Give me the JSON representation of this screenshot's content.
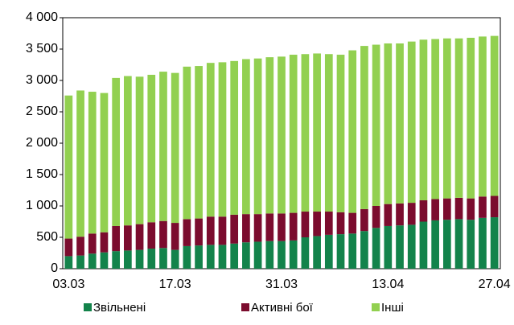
{
  "chart_data": {
    "type": "stacked_bar",
    "categories": [
      "03.03",
      null,
      null,
      null,
      null,
      null,
      null,
      null,
      null,
      "17.03",
      null,
      null,
      null,
      null,
      null,
      null,
      null,
      null,
      "31.03",
      null,
      null,
      null,
      null,
      null,
      null,
      null,
      null,
      "13.04",
      null,
      null,
      null,
      null,
      null,
      null,
      null,
      null,
      "27.04"
    ],
    "series": [
      {
        "name": "Звільнені",
        "color": "#13834b",
        "values": [
          200,
          210,
          240,
          260,
          280,
          290,
          300,
          320,
          330,
          300,
          360,
          370,
          380,
          380,
          400,
          420,
          430,
          440,
          440,
          450,
          500,
          520,
          540,
          550,
          560,
          600,
          650,
          680,
          690,
          700,
          750,
          770,
          780,
          790,
          780,
          810,
          820
        ]
      },
      {
        "name": "Активні бої",
        "color": "#7b0c2e",
        "values": [
          280,
          300,
          320,
          320,
          400,
          400,
          410,
          420,
          430,
          430,
          430,
          430,
          450,
          450,
          460,
          450,
          440,
          440,
          440,
          440,
          410,
          390,
          370,
          350,
          330,
          350,
          350,
          350,
          350,
          350,
          340,
          340,
          340,
          340,
          340,
          340,
          340
        ]
      },
      {
        "name": "Інші",
        "color": "#92d050",
        "values": [
          2280,
          2330,
          2260,
          2220,
          2360,
          2380,
          2350,
          2350,
          2380,
          2390,
          2430,
          2430,
          2450,
          2460,
          2450,
          2470,
          2480,
          2490,
          2500,
          2520,
          2510,
          2520,
          2510,
          2510,
          2590,
          2600,
          2570,
          2560,
          2550,
          2570,
          2560,
          2550,
          2550,
          2540,
          2560,
          2550,
          2550
        ]
      }
    ],
    "ylim": [
      0,
      4000
    ],
    "yticks": [
      0,
      500,
      {
        "value": 1000,
        "label": "1 000"
      },
      {
        "value": 1500,
        "label": "1 500"
      },
      {
        "value": 2000,
        "label": "2 000"
      },
      {
        "value": 2500,
        "label": "2 500"
      },
      {
        "value": 3000,
        "label": "3 000"
      },
      {
        "value": 3500,
        "label": "3 500"
      },
      {
        "value": 4000,
        "label": "4 000"
      }
    ],
    "legend": "bottom"
  }
}
